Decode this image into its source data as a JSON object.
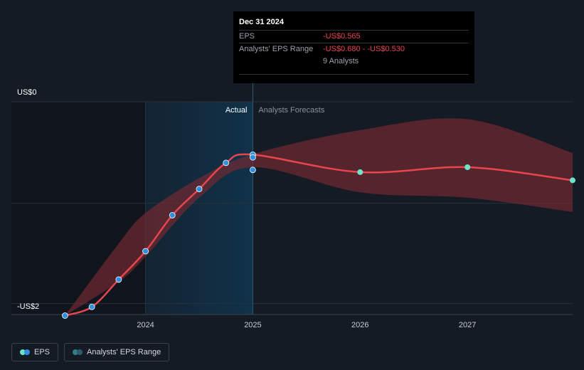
{
  "colors": {
    "background": "#151b24",
    "eps_line": "#e8454d",
    "range_fill": "#7a2a31",
    "actual_point": "#2f8fe0",
    "forecast_point": "#6fe3c8",
    "actual_region": "#10324a",
    "grid": "#2a313b"
  },
  "tooltip": {
    "date": "Dec 31 2024",
    "eps_label": "EPS",
    "eps_value": "-US$0.565",
    "range_label": "Analysts' EPS Range",
    "range_value": "-US$0.680 - -US$0.530",
    "analysts": "9 Analysts"
  },
  "regions": {
    "actual": "Actual",
    "forecast": "Analysts Forecasts"
  },
  "legend": {
    "eps": "EPS",
    "range": "Analysts' EPS Range"
  },
  "chart_data": {
    "type": "line",
    "title": "",
    "xlabel": "",
    "ylabel": "",
    "y_top_label": "US$0",
    "y_bottom_label": "-US$2",
    "x_ticks": [
      {
        "label": "2024",
        "x": 2024.0
      },
      {
        "label": "2025",
        "x": 2025.0
      },
      {
        "label": "2026",
        "x": 2026.0
      },
      {
        "label": "2027",
        "x": 2027.0
      }
    ],
    "xlim": [
      2022.75,
      2027.98
    ],
    "ylim": [
      -1.95,
      0.0
    ],
    "gridlines_y": [
      0.0,
      -0.93,
      -1.85
    ],
    "actual_divider_x": 2024.0,
    "forecast_start_x": 2025.0,
    "series": [
      {
        "name": "EPS",
        "points": [
          {
            "x": 2023.25,
            "y": -1.96,
            "kind": "actual"
          },
          {
            "x": 2023.5,
            "y": -1.88,
            "kind": "actual"
          },
          {
            "x": 2023.75,
            "y": -1.63,
            "kind": "actual"
          },
          {
            "x": 2024.0,
            "y": -1.37,
            "kind": "actual"
          },
          {
            "x": 2024.25,
            "y": -1.04,
            "kind": "actual"
          },
          {
            "x": 2024.5,
            "y": -0.8,
            "kind": "actual"
          },
          {
            "x": 2024.75,
            "y": -0.56,
            "kind": "actual"
          },
          {
            "x": 2025.0,
            "y": -0.485,
            "kind": "actual"
          },
          {
            "x": 2025.0,
            "y": -0.51,
            "kind": "actual"
          },
          {
            "x": 2025.0,
            "y": -0.625,
            "kind": "actual"
          },
          {
            "x": 2026.0,
            "y": -0.645,
            "kind": "forecast"
          },
          {
            "x": 2027.0,
            "y": -0.6,
            "kind": "forecast"
          },
          {
            "x": 2027.98,
            "y": -0.72,
            "kind": "forecast"
          }
        ]
      }
    ],
    "range_band": {
      "name": "Analysts' EPS Range",
      "upper": [
        {
          "x": 2023.25,
          "y": -1.96
        },
        {
          "x": 2023.75,
          "y": -1.3
        },
        {
          "x": 2024.0,
          "y": -1.02
        },
        {
          "x": 2024.5,
          "y": -0.7
        },
        {
          "x": 2025.0,
          "y": -0.48
        },
        {
          "x": 2026.0,
          "y": -0.26
        },
        {
          "x": 2027.0,
          "y": -0.16
        },
        {
          "x": 2027.98,
          "y": -0.47
        }
      ],
      "lower": [
        {
          "x": 2027.98,
          "y": -1.01
        },
        {
          "x": 2027.0,
          "y": -0.88
        },
        {
          "x": 2026.0,
          "y": -0.83
        },
        {
          "x": 2025.0,
          "y": -0.6
        },
        {
          "x": 2024.5,
          "y": -0.88
        },
        {
          "x": 2024.0,
          "y": -1.42
        },
        {
          "x": 2023.75,
          "y": -1.65
        },
        {
          "x": 2023.25,
          "y": -1.96
        }
      ]
    }
  }
}
